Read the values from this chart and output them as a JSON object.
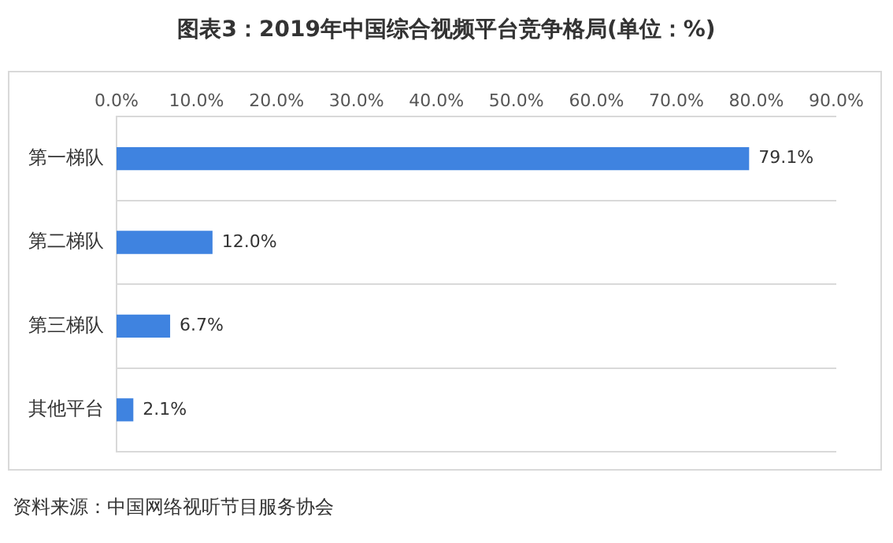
{
  "chart_data": {
    "type": "bar",
    "orientation": "horizontal",
    "title": "图表3：2019年中国综合视频平台竞争格局(单位：%)",
    "categories": [
      "第一梯队",
      "第二梯队",
      "第三梯队",
      "其他平台"
    ],
    "values": [
      79.1,
      12.0,
      6.7,
      2.1
    ],
    "value_labels": [
      "79.1%",
      "12.0%",
      "6.7%",
      "2.1%"
    ],
    "color": "#3f83e0",
    "xlim": [
      0,
      90
    ],
    "xticks": [
      {
        "value": 0,
        "label": "0.0%"
      },
      {
        "value": 10,
        "label": "10.0%"
      },
      {
        "value": 20,
        "label": "20.0%"
      },
      {
        "value": 30,
        "label": "30.0%"
      },
      {
        "value": 40,
        "label": "40.0%"
      },
      {
        "value": 50,
        "label": "50.0%"
      },
      {
        "value": 60,
        "label": "60.0%"
      },
      {
        "value": 70,
        "label": "70.0%"
      },
      {
        "value": 80,
        "label": "80.0%"
      },
      {
        "value": 90,
        "label": "90.0%"
      }
    ],
    "grid": "y",
    "annotations": [
      "资料来源：中国网络视听节目服务协会"
    ]
  }
}
